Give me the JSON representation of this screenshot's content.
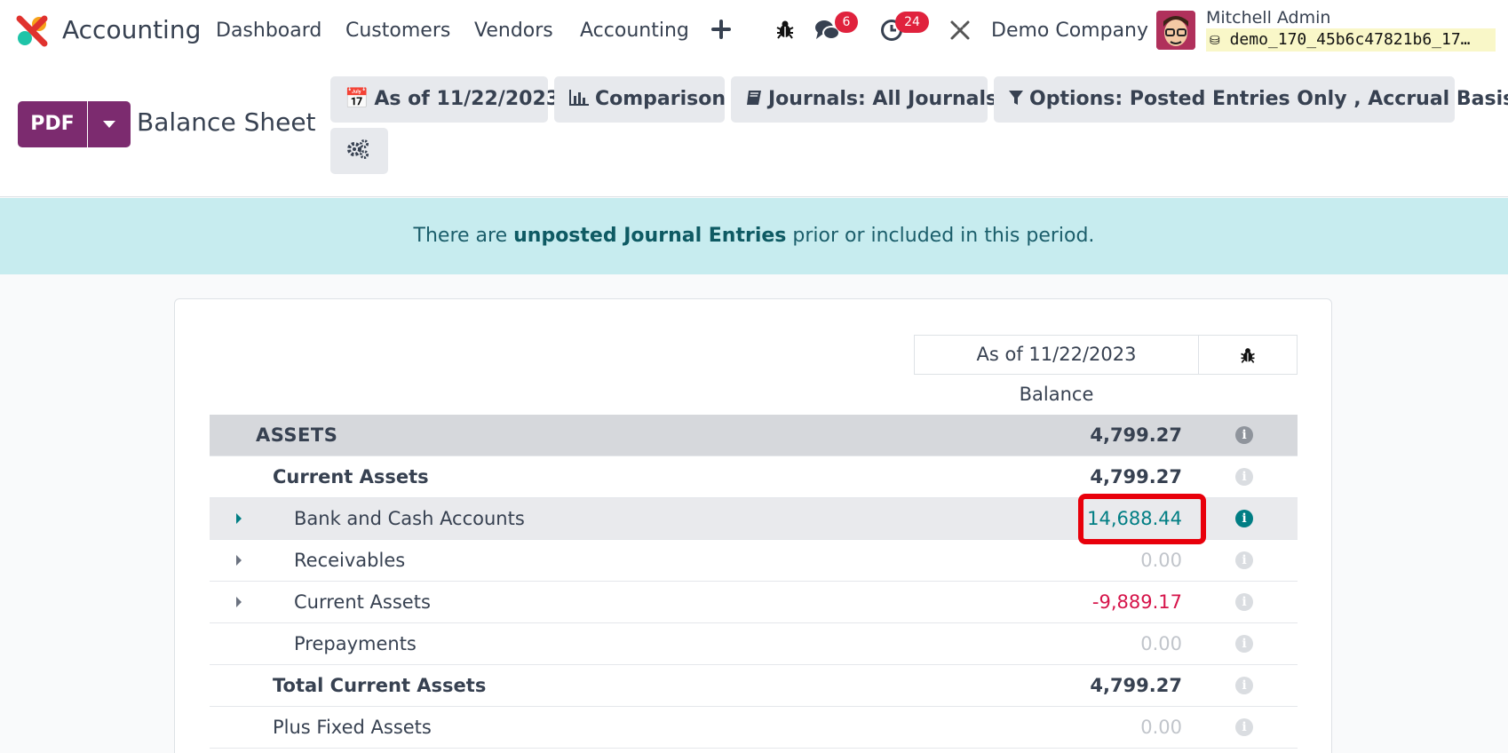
{
  "navbar": {
    "app_name": "Accounting",
    "menu": [
      "Dashboard",
      "Customers",
      "Vendors",
      "Accounting"
    ],
    "add_icon": "plus-icon",
    "debug_icon": "bug-icon",
    "messages_badge": "6",
    "activities_badge": "24",
    "settings_icon": "tools-icon",
    "company": "Demo Company",
    "user_name": "Mitchell Admin",
    "db_name": "demo_170_45b6c47821b6_17…"
  },
  "control": {
    "pdf_label": "PDF",
    "title": "Balance Sheet",
    "date_filter": "As of 11/22/2023",
    "comparison": "Comparison",
    "journals": "Journals: All Journals",
    "options": "Options: Posted Entries Only , Accrual Basis"
  },
  "alert": {
    "before": "There are ",
    "link": "unposted Journal Entries",
    "after": " prior or included in this period."
  },
  "report": {
    "column_header": "As of 11/22/2023",
    "column_sub": "Balance",
    "rows": [
      {
        "label": "ASSETS",
        "amount": "4,799.27"
      },
      {
        "label": "Current Assets",
        "amount": "4,799.27"
      },
      {
        "label": "Bank and Cash Accounts",
        "amount": "14,688.44"
      },
      {
        "label": "Receivables",
        "amount": "0.00"
      },
      {
        "label": "Current Assets",
        "amount": "-9,889.17"
      },
      {
        "label": "Prepayments",
        "amount": "0.00"
      },
      {
        "label": "Total Current Assets",
        "amount": "4,799.27"
      },
      {
        "label": "Plus Fixed Assets",
        "amount": "0.00"
      }
    ]
  },
  "colors": {
    "brand": "#7c2b6f",
    "teal": "#017e84",
    "negative": "#d6144a",
    "highlight": "#e8000b",
    "alert_bg": "#c7ecef"
  }
}
